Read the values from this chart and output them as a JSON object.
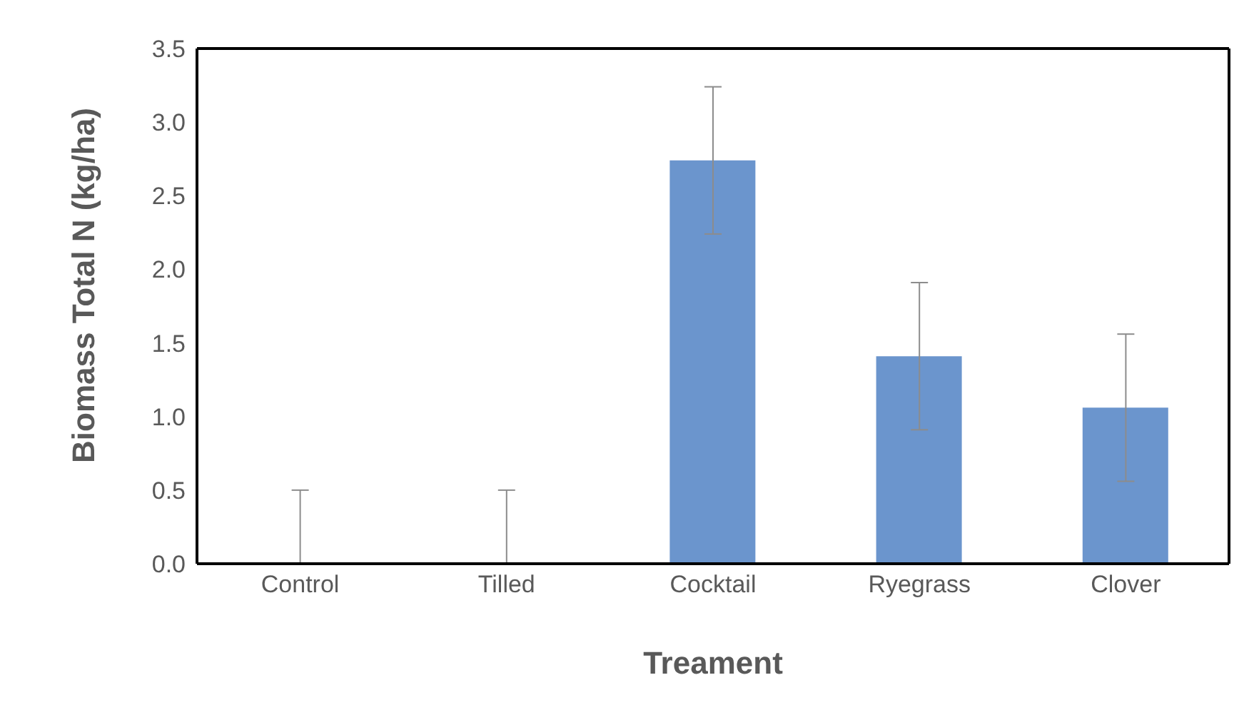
{
  "chart_data": {
    "type": "bar",
    "xlabel": "Treament",
    "ylabel": "Biomass Total N (kg/ha)",
    "categories": [
      "Control",
      "Tilled",
      "Cocktail",
      "Ryegrass",
      "Clover"
    ],
    "values": [
      0,
      0,
      2.74,
      1.41,
      1.06
    ],
    "errors": [
      [
        0,
        0.5
      ],
      [
        0,
        0.5
      ],
      0.5,
      0.5,
      0.5
    ],
    "color": "#6b95cd",
    "ylim": [
      0,
      3.5
    ],
    "yticks": [
      {
        "value": 0,
        "label": "0.0"
      },
      {
        "value": 0.5,
        "label": "0.5"
      },
      {
        "value": 1,
        "label": "1.0"
      },
      {
        "value": 1.5,
        "label": "1.5"
      },
      {
        "value": 2,
        "label": "2.0"
      },
      {
        "value": 2.5,
        "label": "2.5"
      },
      {
        "value": 3,
        "label": "3.0"
      },
      {
        "value": 3.5,
        "label": "3.5"
      }
    ],
    "grid": false,
    "legend": false
  }
}
